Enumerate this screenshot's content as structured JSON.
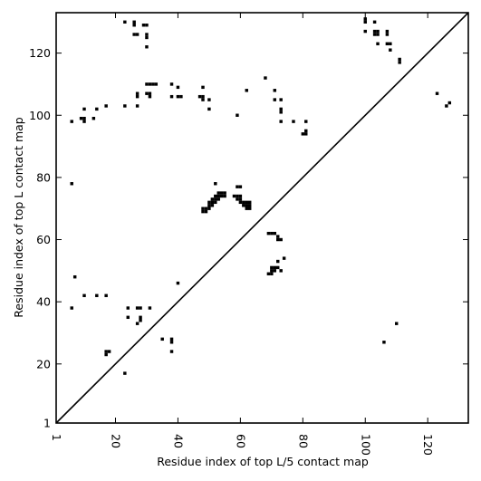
{
  "chart_data": {
    "type": "heatmap",
    "title": "",
    "xlabel": "Residue index of top L/5 contact map",
    "ylabel": "Residue index of top L contact map",
    "xlim": [
      1,
      133
    ],
    "ylim": [
      1,
      133
    ],
    "x_ticks": [
      1,
      20,
      40,
      60,
      80,
      100,
      120
    ],
    "y_ticks": [
      1,
      20,
      40,
      60,
      80,
      100,
      120
    ],
    "x_tick_rotation": -90,
    "grid": false,
    "diagonal": true,
    "colors": {
      "contact": "#000000",
      "background": "#ffffff",
      "frame": "#000000"
    },
    "upper_left_contacts_top_L": [
      [
        6,
        98
      ],
      [
        9,
        99
      ],
      [
        10,
        99
      ],
      [
        10,
        98
      ],
      [
        10,
        102
      ],
      [
        13,
        99
      ],
      [
        14,
        102
      ],
      [
        17,
        103
      ],
      [
        23,
        103
      ],
      [
        23,
        130
      ],
      [
        26,
        130
      ],
      [
        26,
        129
      ],
      [
        26,
        126
      ],
      [
        27,
        126
      ],
      [
        27,
        107
      ],
      [
        27,
        106
      ],
      [
        27,
        103
      ],
      [
        29,
        129
      ],
      [
        30,
        129
      ],
      [
        30,
        126
      ],
      [
        30,
        125
      ],
      [
        30,
        122
      ],
      [
        30,
        110
      ],
      [
        30,
        107
      ],
      [
        31,
        110
      ],
      [
        31,
        107
      ],
      [
        31,
        106
      ],
      [
        32,
        110
      ],
      [
        33,
        110
      ],
      [
        38,
        110
      ],
      [
        38,
        106
      ],
      [
        40,
        109
      ],
      [
        40,
        106
      ],
      [
        41,
        106
      ],
      [
        47,
        106
      ],
      [
        48,
        109
      ],
      [
        48,
        106
      ],
      [
        48,
        105
      ],
      [
        50,
        105
      ],
      [
        50,
        102
      ],
      [
        59,
        100
      ],
      [
        62,
        108
      ],
      [
        68,
        112
      ],
      [
        71,
        108
      ],
      [
        71,
        105
      ],
      [
        73,
        105
      ],
      [
        73,
        102
      ],
      [
        73,
        101
      ],
      [
        73,
        98
      ],
      [
        77,
        98
      ],
      [
        80,
        94
      ],
      [
        81,
        95
      ],
      [
        81,
        94
      ],
      [
        81,
        98
      ],
      [
        6,
        78
      ],
      [
        7,
        48
      ],
      [
        6,
        38
      ],
      [
        10,
        42
      ],
      [
        14,
        42
      ],
      [
        17,
        42
      ],
      [
        17,
        24
      ],
      [
        17,
        23
      ],
      [
        18,
        24
      ],
      [
        23,
        17
      ],
      [
        24,
        38
      ],
      [
        24,
        35
      ],
      [
        27,
        38
      ],
      [
        28,
        38
      ],
      [
        28,
        35
      ],
      [
        28,
        34
      ],
      [
        27,
        33
      ],
      [
        31,
        38
      ],
      [
        35,
        28
      ],
      [
        38,
        28
      ],
      [
        38,
        27
      ],
      [
        38,
        24
      ],
      [
        40,
        46
      ],
      [
        48,
        70
      ],
      [
        48,
        69
      ],
      [
        49,
        70
      ],
      [
        49,
        69
      ],
      [
        50,
        72
      ],
      [
        50,
        71
      ],
      [
        50,
        70
      ],
      [
        51,
        73
      ],
      [
        51,
        72
      ],
      [
        51,
        71
      ],
      [
        52,
        78
      ],
      [
        52,
        74
      ],
      [
        52,
        73
      ],
      [
        52,
        72
      ],
      [
        53,
        75
      ],
      [
        53,
        74
      ],
      [
        53,
        73
      ],
      [
        54,
        75
      ],
      [
        54,
        74
      ],
      [
        55,
        75
      ],
      [
        55,
        74
      ],
      [
        58,
        74
      ],
      [
        59,
        77
      ],
      [
        59,
        74
      ],
      [
        59,
        73
      ],
      [
        60,
        77
      ],
      [
        60,
        74
      ],
      [
        60,
        73
      ],
      [
        60,
        72
      ],
      [
        61,
        72
      ],
      [
        61,
        71
      ],
      [
        62,
        72
      ],
      [
        62,
        71
      ],
      [
        62,
        70
      ],
      [
        63,
        72
      ],
      [
        63,
        71
      ],
      [
        63,
        70
      ],
      [
        69,
        62
      ],
      [
        69,
        49
      ],
      [
        70,
        62
      ],
      [
        70,
        51
      ],
      [
        70,
        50
      ],
      [
        70,
        49
      ],
      [
        71,
        62
      ],
      [
        71,
        51
      ],
      [
        71,
        50
      ],
      [
        72,
        61
      ],
      [
        72,
        60
      ],
      [
        72,
        53
      ],
      [
        72,
        51
      ],
      [
        73,
        60
      ],
      [
        73,
        50
      ],
      [
        74,
        54
      ],
      [
        100,
        131
      ],
      [
        100,
        130
      ],
      [
        100,
        127
      ],
      [
        103,
        130
      ],
      [
        103,
        127
      ],
      [
        103,
        126
      ],
      [
        104,
        127
      ],
      [
        104,
        126
      ],
      [
        104,
        123
      ],
      [
        107,
        127
      ],
      [
        107,
        126
      ],
      [
        107,
        123
      ],
      [
        108,
        123
      ],
      [
        108,
        121
      ],
      [
        111,
        118
      ],
      [
        111,
        117
      ],
      [
        123,
        107
      ],
      [
        126,
        103
      ],
      [
        127,
        104
      ],
      [
        106,
        27
      ],
      [
        110,
        33
      ]
    ]
  }
}
